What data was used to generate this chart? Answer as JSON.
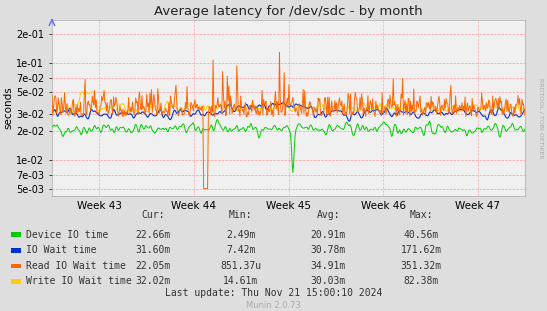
{
  "title": "Average latency for /dev/sdc - by month",
  "ylabel": "seconds",
  "x_labels": [
    "Week 43",
    "Week 44",
    "Week 45",
    "Week 46",
    "Week 47"
  ],
  "y_ticks": [
    0.005,
    0.007,
    0.01,
    0.02,
    0.03,
    0.05,
    0.07,
    0.1,
    0.2
  ],
  "ylim": [
    0.0042,
    0.28
  ],
  "background_color": "#dedede",
  "plot_bg_color": "#f0f0f0",
  "grid_color": "#ff9999",
  "grid_color_x": "#ccccff",
  "legend_items": [
    {
      "label": "Device IO time",
      "color": "#00cc00"
    },
    {
      "label": "IO Wait time",
      "color": "#0033cc"
    },
    {
      "label": "Read IO Wait time",
      "color": "#ff6600"
    },
    {
      "label": "Write IO Wait time",
      "color": "#ffcc00"
    }
  ],
  "table_headers": [
    "Cur:",
    "Min:",
    "Avg:",
    "Max:"
  ],
  "table_data": [
    [
      "22.66m",
      "2.49m",
      "20.91m",
      "40.56m"
    ],
    [
      "31.60m",
      "7.42m",
      "30.78m",
      "171.62m"
    ],
    [
      "22.05m",
      "851.37u",
      "34.91m",
      "351.32m"
    ],
    [
      "32.02m",
      "14.61m",
      "30.03m",
      "82.38m"
    ]
  ],
  "last_update": "Last update: Thu Nov 21 15:00:10 2024",
  "footer": "Munin 2.0.73",
  "rrdtool_label": "RRDTOOL / TOBI OETIKER"
}
